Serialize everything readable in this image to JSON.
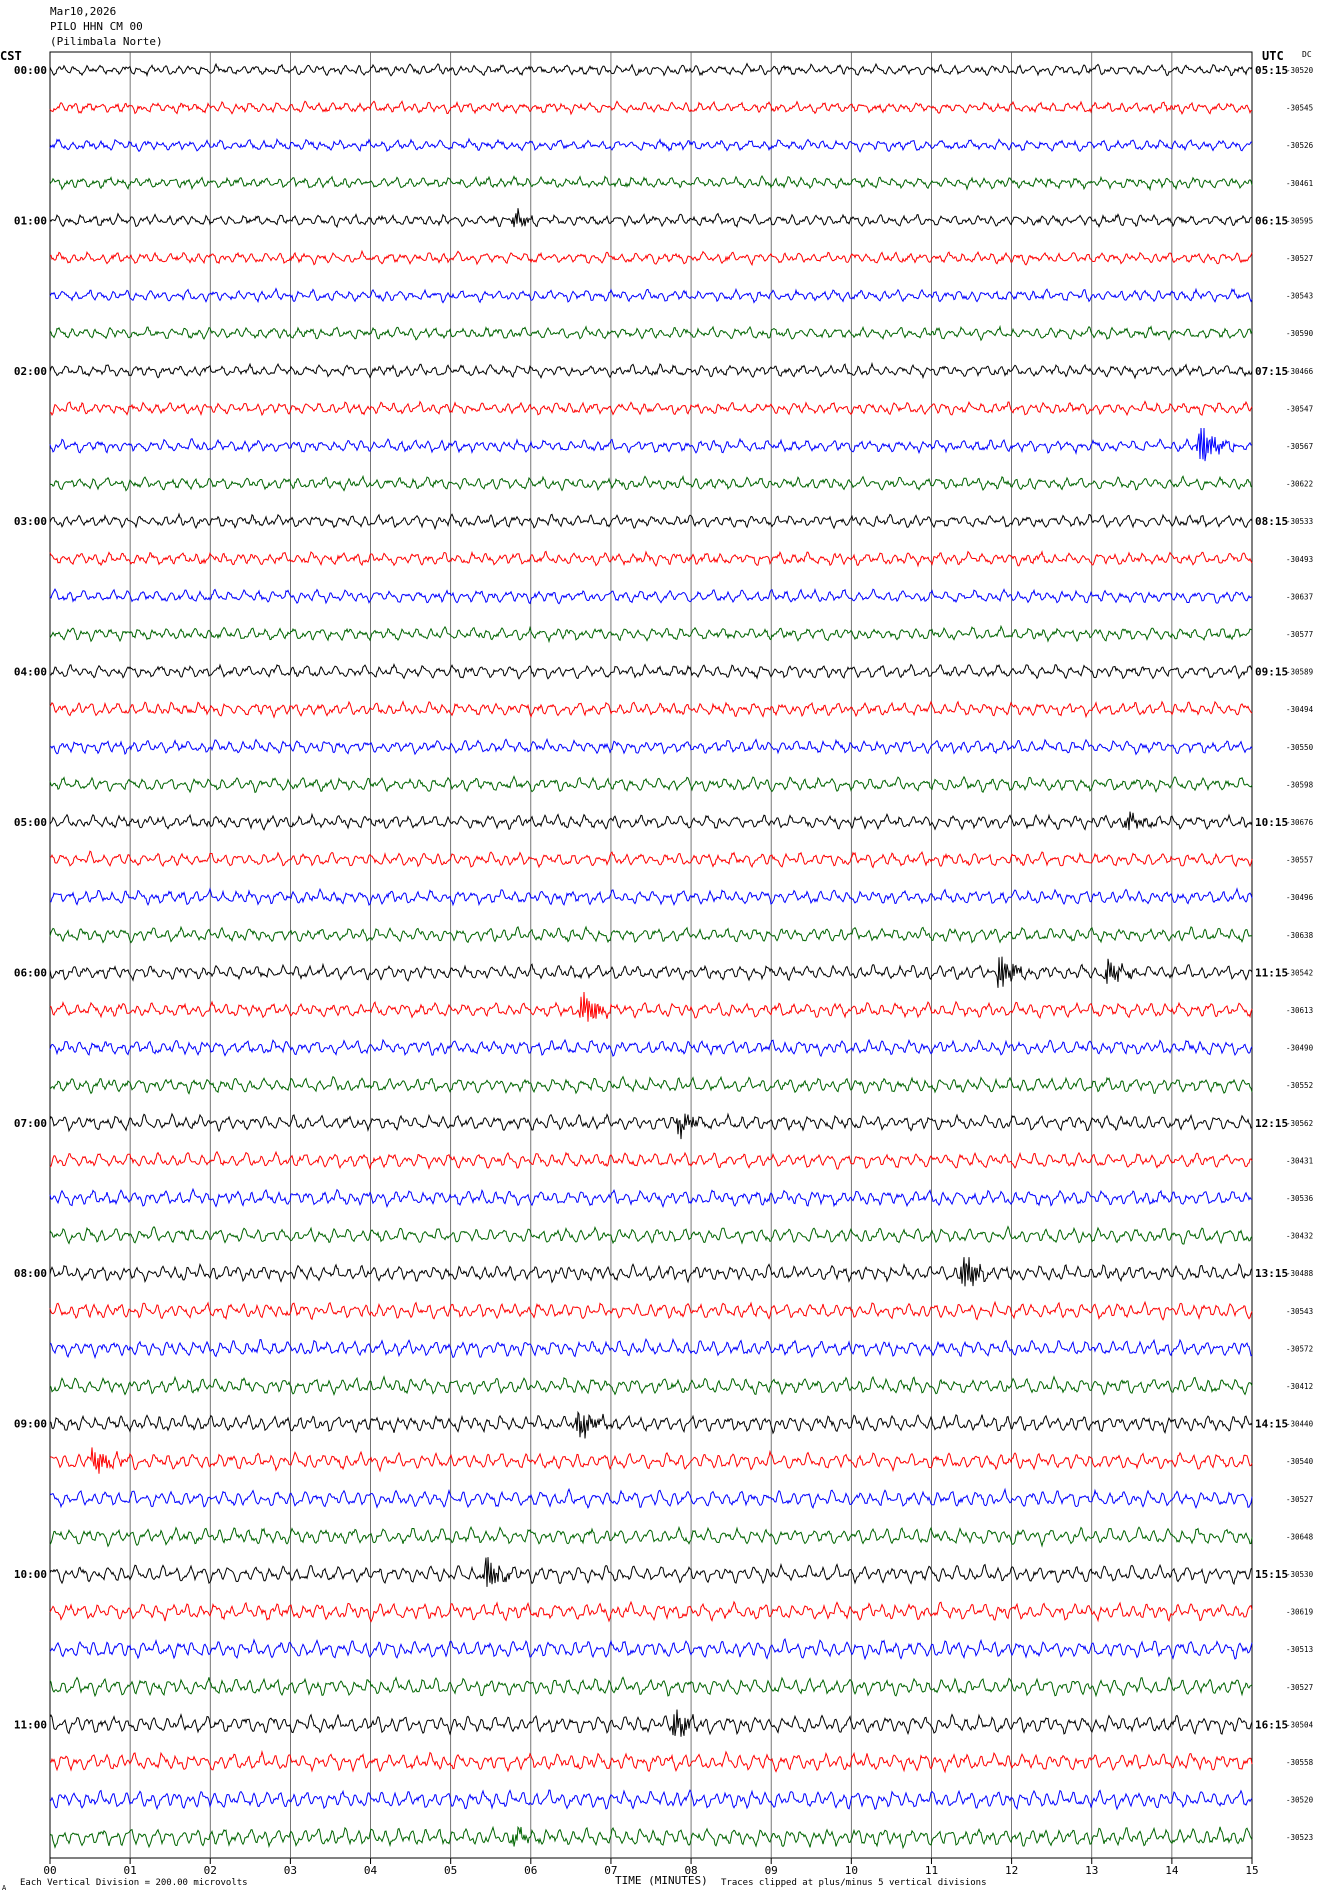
{
  "header": {
    "date": "Mar10,2026",
    "station": "PILO HHN CM 00",
    "site": "(Pilimbala Norte)"
  },
  "left_tz": "CST",
  "right_tz": "UTC",
  "dc_label": "DC",
  "footer": {
    "scale_note": "Each Vertical Division =  200.00 microvolts",
    "axis_title": "TIME (MINUTES)",
    "clip_note": "Traces clipped at plus/minus 5 vertical divisions",
    "corner_mark": "A"
  },
  "colors": {
    "trace_cycle": [
      "#000000",
      "#ff0000",
      "#0000ff",
      "#006400"
    ],
    "grid": "#000000",
    "frame": "#000000"
  },
  "chart_data": {
    "type": "line",
    "title": "PILO HHN CM 00 (Pilimbala Norte) Mar10,2026",
    "xlabel": "TIME (MINUTES)",
    "xlim": [
      0,
      15
    ],
    "x_ticks": [
      "00",
      "01",
      "02",
      "03",
      "04",
      "05",
      "06",
      "07",
      "08",
      "09",
      "10",
      "11",
      "12",
      "13",
      "14",
      "15"
    ],
    "trace_minutes": 15,
    "left_hour_labels": [
      "00:00",
      "01:00",
      "02:00",
      "03:00",
      "04:00",
      "05:00",
      "06:00",
      "07:00",
      "08:00",
      "09:00",
      "10:00",
      "11:00"
    ],
    "right_hour_labels": [
      "05:15",
      "06:15",
      "07:15",
      "08:15",
      "09:15",
      "10:15",
      "11:15",
      "12:15",
      "13:15",
      "14:15",
      "15:15",
      "16:15"
    ],
    "dc_offsets": [
      -30520,
      -30545,
      -30526,
      -30461,
      -30595,
      -30527,
      -30543,
      -30590,
      -30466,
      -30547,
      -30567,
      -30622,
      -30533,
      -30493,
      -30637,
      -30577,
      -30589,
      -30494,
      -30550,
      -30598,
      -30676,
      -30557,
      -30496,
      -30638,
      -30542,
      -30613,
      -30490,
      -30552,
      -30562,
      -30431,
      -30536,
      -30432,
      -30488,
      -30543,
      -30572,
      -30412,
      -30440,
      -30540,
      -30527,
      -30648,
      -30530,
      -30619,
      -30513,
      -30527,
      -30504,
      -30558,
      -30520,
      -30523
    ],
    "events": [
      {
        "trace": 10,
        "minute": 14.35,
        "size": 1.6
      },
      {
        "trace": 24,
        "minute": 11.85,
        "size": 1.2
      },
      {
        "trace": 24,
        "minute": 13.2,
        "size": 0.9
      },
      {
        "trace": 25,
        "minute": 6.65,
        "size": 1.4
      },
      {
        "trace": 28,
        "minute": 7.85,
        "size": 0.8
      },
      {
        "trace": 32,
        "minute": 11.4,
        "size": 1.3
      },
      {
        "trace": 36,
        "minute": 6.6,
        "size": 1.1
      },
      {
        "trace": 37,
        "minute": 0.55,
        "size": 0.9
      },
      {
        "trace": 40,
        "minute": 5.45,
        "size": 1.0
      },
      {
        "trace": 44,
        "minute": 7.8,
        "size": 0.9
      },
      {
        "trace": 47,
        "minute": 5.8,
        "size": 0.6
      },
      {
        "trace": 20,
        "minute": 13.45,
        "size": 0.6
      },
      {
        "trace": 4,
        "minute": 5.8,
        "size": 0.5
      }
    ]
  }
}
